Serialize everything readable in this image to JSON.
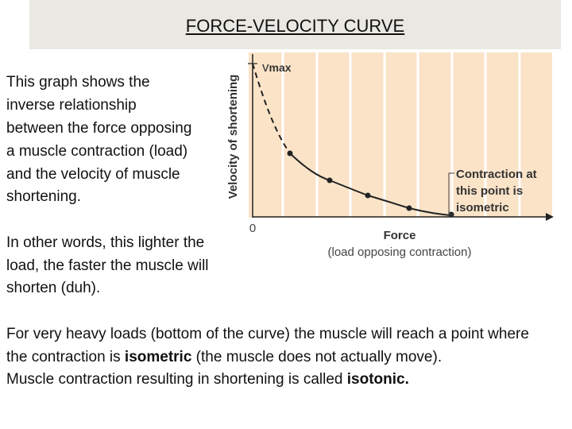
{
  "header": {
    "title": "FORCE-VELOCITY CURVE"
  },
  "intro": {
    "lines": [
      "This graph shows the",
      "inverse relationship",
      "between the force opposing",
      "a muscle contraction (load)",
      "and the velocity of muscle",
      "shortening."
    ]
  },
  "aside": {
    "lines": [
      "In other words, this lighter the",
      "load, the faster the muscle will",
      "shorten (duh)."
    ]
  },
  "note": {
    "line1": "For very heavy loads (bottom of the curve) the muscle will reach a point where",
    "line2": {
      "before": "the contraction is ",
      "bold": "isometric",
      "after": " (the muscle does not actually move)."
    },
    "line3": {
      "before": "Muscle contraction resulting in shortening is called ",
      "bold": "isotonic."
    }
  },
  "figure": {
    "y_axis_label": "Velocity of shortening",
    "vmax": "v",
    "vmax_sub": "max",
    "origin": "0",
    "x_axis_label": "Force",
    "x_axis_sublabel": "(load opposing contraction)",
    "annotation": [
      "Contraction at",
      "this point is",
      "isometric"
    ]
  }
}
